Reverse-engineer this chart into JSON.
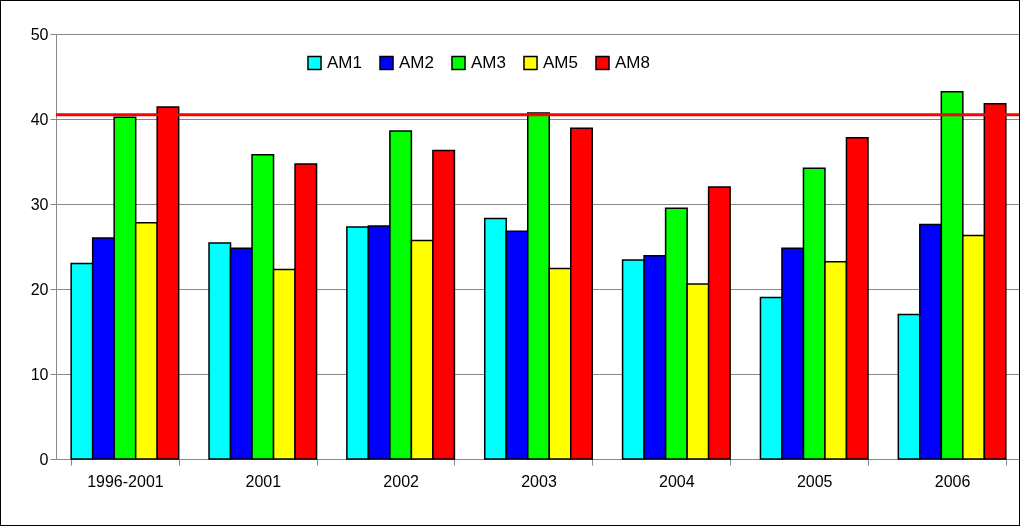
{
  "chart_data": {
    "type": "bar",
    "categories": [
      "1996-2001",
      "2001",
      "2002",
      "2003",
      "2004",
      "2005",
      "2006"
    ],
    "series": [
      {
        "name": "AM1",
        "color": "#00ffff",
        "values": [
          23.0,
          25.4,
          27.3,
          28.3,
          23.4,
          19.0,
          17.0
        ]
      },
      {
        "name": "AM2",
        "color": "#0000ff",
        "values": [
          26.0,
          24.8,
          27.4,
          26.8,
          23.9,
          24.8,
          27.6
        ]
      },
      {
        "name": "AM3",
        "color": "#00ff00",
        "values": [
          40.2,
          35.8,
          38.6,
          40.7,
          29.5,
          34.2,
          43.2
        ]
      },
      {
        "name": "AM5",
        "color": "#ffff00",
        "values": [
          27.8,
          22.3,
          25.7,
          22.4,
          20.6,
          23.2,
          26.3
        ]
      },
      {
        "name": "AM8",
        "color": "#ff0000",
        "values": [
          41.4,
          34.7,
          36.3,
          38.9,
          32.0,
          37.8,
          41.8
        ]
      }
    ],
    "ylim": [
      0,
      50
    ],
    "yticks": [
      0,
      10,
      20,
      30,
      40,
      50
    ],
    "grid": "y",
    "legend": "top",
    "ref_lines": [
      {
        "axis": "y",
        "value": 40.5,
        "color": "#ff0000"
      }
    ]
  }
}
